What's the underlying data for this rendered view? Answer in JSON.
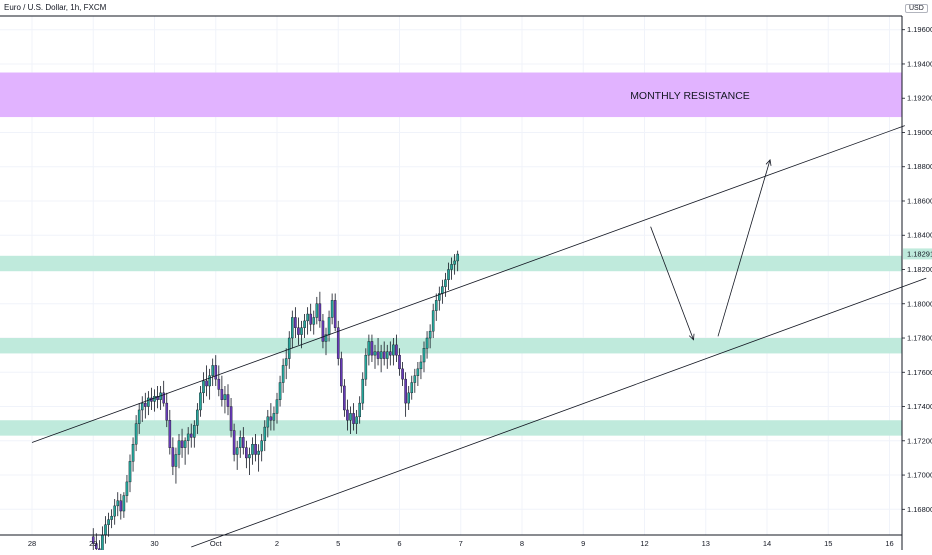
{
  "header": {
    "title": "Euro / U.S. Dollar, 1h, FXCM",
    "currency": "USD"
  },
  "chart_data": {
    "type": "candlestick",
    "x_ticks": [
      "28",
      "29",
      "30",
      "Oct",
      "2",
      "5",
      "6",
      "7",
      "8",
      "9",
      "12",
      "13",
      "14",
      "15",
      "16"
    ],
    "y_ticks": [
      "1.19600",
      "1.19400",
      "1.19200",
      "1.19000",
      "1.18800",
      "1.18600",
      "1.18400",
      "1.18200",
      "1.18000",
      "1.17800",
      "1.17600",
      "1.17400",
      "1.17200",
      "1.17000",
      "1.16800"
    ],
    "ylim": [
      1.1665,
      1.1968
    ],
    "last_price": "1.18291",
    "zones": [
      {
        "label": "MONTHLY RESISTANCE",
        "from": 1.1909,
        "to": 1.1935,
        "color": "#e1b3ff"
      },
      {
        "label": "",
        "from": 1.1819,
        "to": 1.1828,
        "color": "#bfeadc"
      },
      {
        "label": "",
        "from": 1.1771,
        "to": 1.178,
        "color": "#bfeadc"
      },
      {
        "label": "",
        "from": 1.1723,
        "to": 1.1732,
        "color": "#bfeadc"
      }
    ],
    "channel": {
      "upper": [
        [
          0.0,
          1.1719
        ],
        [
          14.25,
          1.1904
        ]
      ],
      "lower": [
        [
          2.6,
          1.1658
        ],
        [
          14.6,
          1.1815
        ]
      ]
    },
    "arrows": [
      [
        [
          10.1,
          1.1845
        ],
        [
          10.8,
          1.1779
        ]
      ],
      [
        [
          11.2,
          1.1781
        ],
        [
          12.05,
          1.1884
        ]
      ]
    ],
    "candles": [
      [
        1.0,
        1.1664,
        1.1669,
        1.1655,
        1.166
      ],
      [
        1.05,
        1.166,
        1.1666,
        1.1652,
        1.1657
      ],
      [
        1.1,
        1.1657,
        1.1662,
        1.1645,
        1.1653
      ],
      [
        1.15,
        1.1653,
        1.167,
        1.1648,
        1.1665
      ],
      [
        1.2,
        1.1665,
        1.1676,
        1.166,
        1.1671
      ],
      [
        1.25,
        1.1671,
        1.1678,
        1.1664,
        1.1674
      ],
      [
        1.3,
        1.1674,
        1.168,
        1.1669,
        1.1676
      ],
      [
        1.35,
        1.1676,
        1.1686,
        1.1671,
        1.1682
      ],
      [
        1.4,
        1.1682,
        1.169,
        1.1676,
        1.1685
      ],
      [
        1.45,
        1.1685,
        1.1689,
        1.1674,
        1.1679
      ],
      [
        1.5,
        1.1679,
        1.169,
        1.1675,
        1.1688
      ],
      [
        1.55,
        1.1688,
        1.17,
        1.1684,
        1.1696
      ],
      [
        1.6,
        1.1696,
        1.1712,
        1.169,
        1.1708
      ],
      [
        1.65,
        1.1708,
        1.1722,
        1.1702,
        1.1718
      ],
      [
        1.7,
        1.1718,
        1.1735,
        1.1714,
        1.173
      ],
      [
        1.75,
        1.173,
        1.1742,
        1.1724,
        1.1738
      ],
      [
        1.8,
        1.1738,
        1.1746,
        1.1731,
        1.1742
      ],
      [
        1.85,
        1.1742,
        1.1748,
        1.1733,
        1.174
      ],
      [
        1.9,
        1.174,
        1.1749,
        1.1735,
        1.1745
      ],
      [
        1.95,
        1.1745,
        1.1751,
        1.1738,
        1.1743
      ],
      [
        2.0,
        1.1743,
        1.175,
        1.1737,
        1.1746
      ],
      [
        2.05,
        1.1746,
        1.1752,
        1.1739,
        1.1744
      ],
      [
        2.1,
        1.1744,
        1.1752,
        1.1738,
        1.1748
      ],
      [
        2.15,
        1.1748,
        1.1755,
        1.174,
        1.1742
      ],
      [
        2.2,
        1.1742,
        1.1748,
        1.1728,
        1.1732
      ],
      [
        2.25,
        1.1732,
        1.1738,
        1.1712,
        1.1716
      ],
      [
        2.3,
        1.1716,
        1.1722,
        1.17,
        1.1705
      ],
      [
        2.35,
        1.1705,
        1.1716,
        1.1695,
        1.1712
      ],
      [
        2.4,
        1.1712,
        1.1724,
        1.1704,
        1.172
      ],
      [
        2.45,
        1.172,
        1.1727,
        1.171,
        1.1716
      ],
      [
        2.5,
        1.1716,
        1.1722,
        1.1706,
        1.172
      ],
      [
        2.55,
        1.172,
        1.1728,
        1.1712,
        1.1724
      ],
      [
        2.6,
        1.1724,
        1.173,
        1.1716,
        1.1722
      ],
      [
        2.65,
        1.1722,
        1.1732,
        1.1716,
        1.1729
      ],
      [
        2.7,
        1.1729,
        1.1742,
        1.1724,
        1.1738
      ],
      [
        2.75,
        1.1738,
        1.1752,
        1.1734,
        1.1748
      ],
      [
        2.8,
        1.1748,
        1.176,
        1.1742,
        1.1755
      ],
      [
        2.85,
        1.1755,
        1.1764,
        1.1746,
        1.1752
      ],
      [
        2.9,
        1.1752,
        1.1762,
        1.1744,
        1.1758
      ],
      [
        2.95,
        1.1758,
        1.1768,
        1.1752,
        1.1764
      ],
      [
        3.0,
        1.1764,
        1.177,
        1.1752,
        1.1756
      ],
      [
        3.05,
        1.1756,
        1.1764,
        1.1746,
        1.175
      ],
      [
        3.1,
        1.175,
        1.1758,
        1.174,
        1.1744
      ],
      [
        3.15,
        1.1744,
        1.1752,
        1.1736,
        1.1747
      ],
      [
        3.2,
        1.1747,
        1.1753,
        1.1735,
        1.174
      ],
      [
        3.25,
        1.174,
        1.1745,
        1.1722,
        1.1726
      ],
      [
        3.3,
        1.1726,
        1.173,
        1.1708,
        1.1712
      ],
      [
        3.35,
        1.1712,
        1.172,
        1.1703,
        1.1716
      ],
      [
        3.4,
        1.1716,
        1.1726,
        1.171,
        1.1722
      ],
      [
        3.45,
        1.1722,
        1.1728,
        1.1712,
        1.1716
      ],
      [
        3.5,
        1.1716,
        1.172,
        1.1704,
        1.171
      ],
      [
        3.55,
        1.171,
        1.1716,
        1.17,
        1.1712
      ],
      [
        3.6,
        1.1712,
        1.1722,
        1.1706,
        1.1718
      ],
      [
        3.65,
        1.1718,
        1.1724,
        1.1708,
        1.1712
      ],
      [
        3.7,
        1.1712,
        1.1718,
        1.1702,
        1.1714
      ],
      [
        3.75,
        1.1714,
        1.1724,
        1.1708,
        1.172
      ],
      [
        3.8,
        1.172,
        1.1732,
        1.1714,
        1.1728
      ],
      [
        3.85,
        1.1728,
        1.1738,
        1.1722,
        1.1734
      ],
      [
        3.9,
        1.1734,
        1.1742,
        1.1726,
        1.1732
      ],
      [
        3.95,
        1.1732,
        1.174,
        1.1726,
        1.1736
      ],
      [
        4.0,
        1.1736,
        1.1748,
        1.173,
        1.1744
      ],
      [
        4.05,
        1.1744,
        1.1758,
        1.174,
        1.1754
      ],
      [
        4.1,
        1.1754,
        1.1768,
        1.1748,
        1.1764
      ],
      [
        4.15,
        1.1764,
        1.1774,
        1.1756,
        1.1768
      ],
      [
        4.2,
        1.1768,
        1.1784,
        1.1762,
        1.178
      ],
      [
        4.25,
        1.178,
        1.1796,
        1.1774,
        1.1792
      ],
      [
        4.3,
        1.1792,
        1.1798,
        1.178,
        1.1786
      ],
      [
        4.35,
        1.1786,
        1.1792,
        1.1776,
        1.1782
      ],
      [
        4.4,
        1.1782,
        1.179,
        1.1774,
        1.1786
      ],
      [
        4.45,
        1.1786,
        1.1794,
        1.178,
        1.179
      ],
      [
        4.5,
        1.179,
        1.1798,
        1.1782,
        1.1794
      ],
      [
        4.55,
        1.1794,
        1.18,
        1.1784,
        1.1788
      ],
      [
        4.6,
        1.1788,
        1.1796,
        1.1782,
        1.1792
      ],
      [
        4.65,
        1.1792,
        1.1804,
        1.1788,
        1.18
      ],
      [
        4.7,
        1.18,
        1.1807,
        1.1786,
        1.179
      ],
      [
        4.75,
        1.179,
        1.1794,
        1.1774,
        1.1778
      ],
      [
        4.8,
        1.1778,
        1.1786,
        1.177,
        1.1782
      ],
      [
        4.85,
        1.1782,
        1.1796,
        1.1778,
        1.1792
      ],
      [
        4.9,
        1.1792,
        1.1806,
        1.1788,
        1.1802
      ],
      [
        4.95,
        1.1802,
        1.1806,
        1.1784,
        1.1786
      ],
      [
        5.0,
        1.1786,
        1.179,
        1.1764,
        1.1768
      ],
      [
        5.05,
        1.1768,
        1.1772,
        1.1748,
        1.1752
      ],
      [
        5.1,
        1.1752,
        1.1756,
        1.1734,
        1.1738
      ],
      [
        5.15,
        1.1738,
        1.1744,
        1.1726,
        1.1732
      ],
      [
        5.2,
        1.1732,
        1.174,
        1.1724,
        1.1736
      ],
      [
        5.25,
        1.1736,
        1.1742,
        1.1726,
        1.173
      ],
      [
        5.3,
        1.173,
        1.1738,
        1.1724,
        1.1734
      ],
      [
        5.35,
        1.1734,
        1.1746,
        1.173,
        1.1742
      ],
      [
        5.4,
        1.1742,
        1.176,
        1.1738,
        1.1756
      ],
      [
        5.45,
        1.1756,
        1.1774,
        1.1752,
        1.177
      ],
      [
        5.5,
        1.177,
        1.1782,
        1.1764,
        1.1778
      ],
      [
        5.55,
        1.1778,
        1.1782,
        1.1766,
        1.177
      ],
      [
        5.6,
        1.177,
        1.1776,
        1.1762,
        1.1772
      ],
      [
        5.65,
        1.1772,
        1.178,
        1.1764,
        1.1768
      ],
      [
        5.7,
        1.1768,
        1.1776,
        1.176,
        1.1772
      ],
      [
        5.75,
        1.1772,
        1.1778,
        1.1764,
        1.1768
      ],
      [
        5.8,
        1.1768,
        1.1776,
        1.1762,
        1.1772
      ],
      [
        5.85,
        1.1772,
        1.1778,
        1.1764,
        1.177
      ],
      [
        5.9,
        1.177,
        1.178,
        1.1764,
        1.1776
      ],
      [
        5.95,
        1.1776,
        1.1782,
        1.1766,
        1.177
      ],
      [
        6.0,
        1.177,
        1.1774,
        1.1758,
        1.1762
      ],
      [
        6.05,
        1.1762,
        1.1766,
        1.1752,
        1.1756
      ],
      [
        6.1,
        1.1756,
        1.176,
        1.1734,
        1.1742
      ],
      [
        6.15,
        1.1742,
        1.1752,
        1.1738,
        1.1748
      ],
      [
        6.2,
        1.1748,
        1.1758,
        1.1744,
        1.1754
      ],
      [
        6.25,
        1.1754,
        1.1762,
        1.1748,
        1.1758
      ],
      [
        6.3,
        1.1758,
        1.1766,
        1.1752,
        1.1762
      ],
      [
        6.35,
        1.1762,
        1.177,
        1.1756,
        1.1766
      ],
      [
        6.4,
        1.1766,
        1.1778,
        1.176,
        1.1774
      ],
      [
        6.45,
        1.1774,
        1.1784,
        1.1768,
        1.178
      ],
      [
        6.5,
        1.178,
        1.1788,
        1.1774,
        1.1784
      ],
      [
        6.55,
        1.1784,
        1.18,
        1.178,
        1.1796
      ],
      [
        6.6,
        1.1796,
        1.1806,
        1.179,
        1.1802
      ],
      [
        6.65,
        1.1802,
        1.181,
        1.1796,
        1.1806
      ],
      [
        6.7,
        1.1806,
        1.1814,
        1.18,
        1.181
      ],
      [
        6.75,
        1.181,
        1.1818,
        1.1804,
        1.1814
      ],
      [
        6.8,
        1.1814,
        1.1824,
        1.1808,
        1.182
      ],
      [
        6.85,
        1.182,
        1.1827,
        1.1814,
        1.1823
      ],
      [
        6.9,
        1.1823,
        1.1829,
        1.1817,
        1.1825
      ],
      [
        6.95,
        1.1825,
        1.1831,
        1.1819,
        1.1829
      ]
    ]
  }
}
